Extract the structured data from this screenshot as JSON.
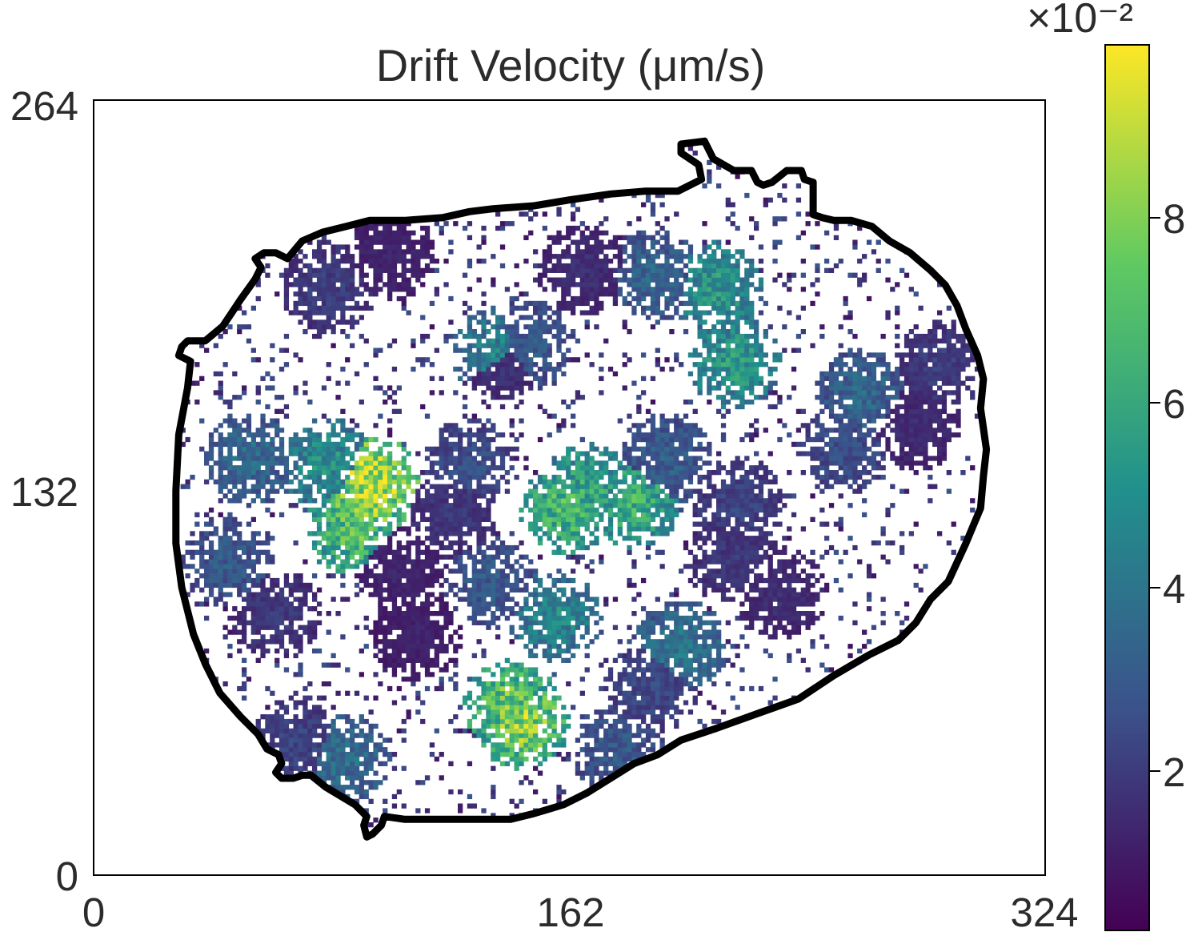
{
  "chart_data": {
    "type": "heatmap",
    "title": "Drift Velocity (μm/s)",
    "xlabel": "",
    "ylabel": "",
    "x_ticks": [
      "0",
      "162",
      "324"
    ],
    "y_ticks": [
      "0",
      "132",
      "264"
    ],
    "xlim": [
      0,
      324
    ],
    "ylim": [
      0,
      264
    ],
    "colorbar": {
      "colormap": "viridis",
      "range": [
        0,
        10
      ],
      "ticks": [
        "2",
        "4",
        "6",
        "8"
      ],
      "scale_label": "×10⁻²",
      "colors": [
        "#440154",
        "#3b528b",
        "#21918c",
        "#5ec962",
        "#fde725"
      ]
    },
    "outline_color": "#000000",
    "outline": [
      [
        200,
        249
      ],
      [
        208,
        250
      ],
      [
        211,
        244
      ],
      [
        218,
        240
      ],
      [
        224,
        240
      ],
      [
        226,
        236
      ],
      [
        228,
        235
      ],
      [
        231,
        236
      ],
      [
        236,
        240
      ],
      [
        241,
        240
      ],
      [
        242,
        237
      ],
      [
        245,
        236
      ],
      [
        245,
        225
      ],
      [
        248,
        224
      ],
      [
        252,
        223
      ],
      [
        258,
        223
      ],
      [
        265,
        221
      ],
      [
        271,
        216
      ],
      [
        278,
        212
      ],
      [
        285,
        206
      ],
      [
        290,
        201
      ],
      [
        294,
        194
      ],
      [
        297,
        186
      ],
      [
        301,
        177
      ],
      [
        303,
        169
      ],
      [
        302,
        159
      ],
      [
        304,
        145
      ],
      [
        303,
        136
      ],
      [
        302,
        125
      ],
      [
        297,
        113
      ],
      [
        291,
        100
      ],
      [
        285,
        94
      ],
      [
        280,
        86
      ],
      [
        274,
        80
      ],
      [
        264,
        75
      ],
      [
        252,
        68
      ],
      [
        240,
        60
      ],
      [
        226,
        55
      ],
      [
        212,
        50
      ],
      [
        200,
        46
      ],
      [
        192,
        41
      ],
      [
        184,
        38
      ],
      [
        176,
        33
      ],
      [
        168,
        28
      ],
      [
        160,
        24
      ],
      [
        150,
        21
      ],
      [
        142,
        19
      ],
      [
        136,
        19
      ],
      [
        128,
        19
      ],
      [
        120,
        19
      ],
      [
        106,
        19
      ],
      [
        99,
        20
      ],
      [
        98,
        17
      ],
      [
        95,
        14
      ],
      [
        93,
        13
      ],
      [
        92,
        17
      ],
      [
        93,
        20
      ],
      [
        89,
        24
      ],
      [
        84,
        27
      ],
      [
        79,
        30
      ],
      [
        74,
        34
      ],
      [
        71,
        34
      ],
      [
        68,
        33
      ],
      [
        64,
        33
      ],
      [
        62,
        35
      ],
      [
        64,
        38
      ],
      [
        63,
        41
      ],
      [
        59,
        43
      ],
      [
        56,
        48
      ],
      [
        50,
        54
      ],
      [
        43,
        62
      ],
      [
        38,
        72
      ],
      [
        34,
        82
      ],
      [
        30,
        98
      ],
      [
        28,
        113
      ],
      [
        28,
        131
      ],
      [
        29,
        150
      ],
      [
        32,
        166
      ],
      [
        33,
        175
      ],
      [
        29,
        177
      ],
      [
        30,
        180
      ],
      [
        32,
        182
      ],
      [
        38,
        182
      ],
      [
        44,
        187
      ],
      [
        50,
        196
      ],
      [
        55,
        203
      ],
      [
        57,
        207
      ],
      [
        55,
        210
      ],
      [
        58,
        212
      ],
      [
        62,
        212
      ],
      [
        66,
        210
      ],
      [
        71,
        216
      ],
      [
        78,
        219
      ],
      [
        86,
        221
      ],
      [
        94,
        223
      ],
      [
        106,
        223
      ],
      [
        119,
        224
      ],
      [
        128,
        226
      ],
      [
        136,
        227
      ],
      [
        150,
        228
      ],
      [
        162,
        230
      ],
      [
        176,
        232
      ],
      [
        188,
        233
      ],
      [
        199,
        233
      ],
      [
        207,
        237
      ],
      [
        206,
        242
      ],
      [
        200,
        246
      ],
      [
        200,
        249
      ]
    ],
    "clusters": [
      {
        "x": 80,
        "y": 140,
        "value": 5.2
      },
      {
        "x": 92,
        "y": 126,
        "value": 8.6
      },
      {
        "x": 95,
        "y": 134,
        "value": 9.5
      },
      {
        "x": 88,
        "y": 118,
        "value": 7.4
      },
      {
        "x": 128,
        "y": 140,
        "value": 2.6
      },
      {
        "x": 122,
        "y": 123,
        "value": 1.8
      },
      {
        "x": 161,
        "y": 125,
        "value": 7.0
      },
      {
        "x": 168,
        "y": 131,
        "value": 6.2
      },
      {
        "x": 184,
        "y": 127,
        "value": 6.5
      },
      {
        "x": 195,
        "y": 142,
        "value": 3.2
      },
      {
        "x": 218,
        "y": 175,
        "value": 5.6
      },
      {
        "x": 212,
        "y": 200,
        "value": 5.4
      },
      {
        "x": 191,
        "y": 204,
        "value": 3.4
      },
      {
        "x": 167,
        "y": 206,
        "value": 1.5
      },
      {
        "x": 147,
        "y": 180,
        "value": 3.0
      },
      {
        "x": 138,
        "y": 178,
        "value": 4.6
      },
      {
        "x": 255,
        "y": 145,
        "value": 2.6
      },
      {
        "x": 262,
        "y": 164,
        "value": 3.5
      },
      {
        "x": 280,
        "y": 153,
        "value": 1.4
      },
      {
        "x": 288,
        "y": 174,
        "value": 2.0
      },
      {
        "x": 157,
        "y": 88,
        "value": 4.8
      },
      {
        "x": 142,
        "y": 58,
        "value": 7.8
      },
      {
        "x": 146,
        "y": 52,
        "value": 8.5
      },
      {
        "x": 135,
        "y": 100,
        "value": 3.0
      },
      {
        "x": 200,
        "y": 78,
        "value": 4.0
      },
      {
        "x": 190,
        "y": 64,
        "value": 2.4
      },
      {
        "x": 53,
        "y": 142,
        "value": 3.6
      },
      {
        "x": 46,
        "y": 107,
        "value": 3.0
      },
      {
        "x": 62,
        "y": 89,
        "value": 1.8
      },
      {
        "x": 70,
        "y": 45,
        "value": 2.2
      },
      {
        "x": 85,
        "y": 40,
        "value": 3.8
      },
      {
        "x": 140,
        "y": 175,
        "value": 1.6
      },
      {
        "x": 105,
        "y": 104,
        "value": 1.2
      },
      {
        "x": 234,
        "y": 96,
        "value": 1.5
      },
      {
        "x": 179,
        "y": 42,
        "value": 3.0
      },
      {
        "x": 110,
        "y": 82,
        "value": 1.1
      },
      {
        "x": 80,
        "y": 200,
        "value": 2.0
      },
      {
        "x": 217,
        "y": 108,
        "value": 1.8
      },
      {
        "x": 101,
        "y": 211,
        "value": 1.2
      },
      {
        "x": 220,
        "y": 127,
        "value": 2.2
      }
    ]
  }
}
